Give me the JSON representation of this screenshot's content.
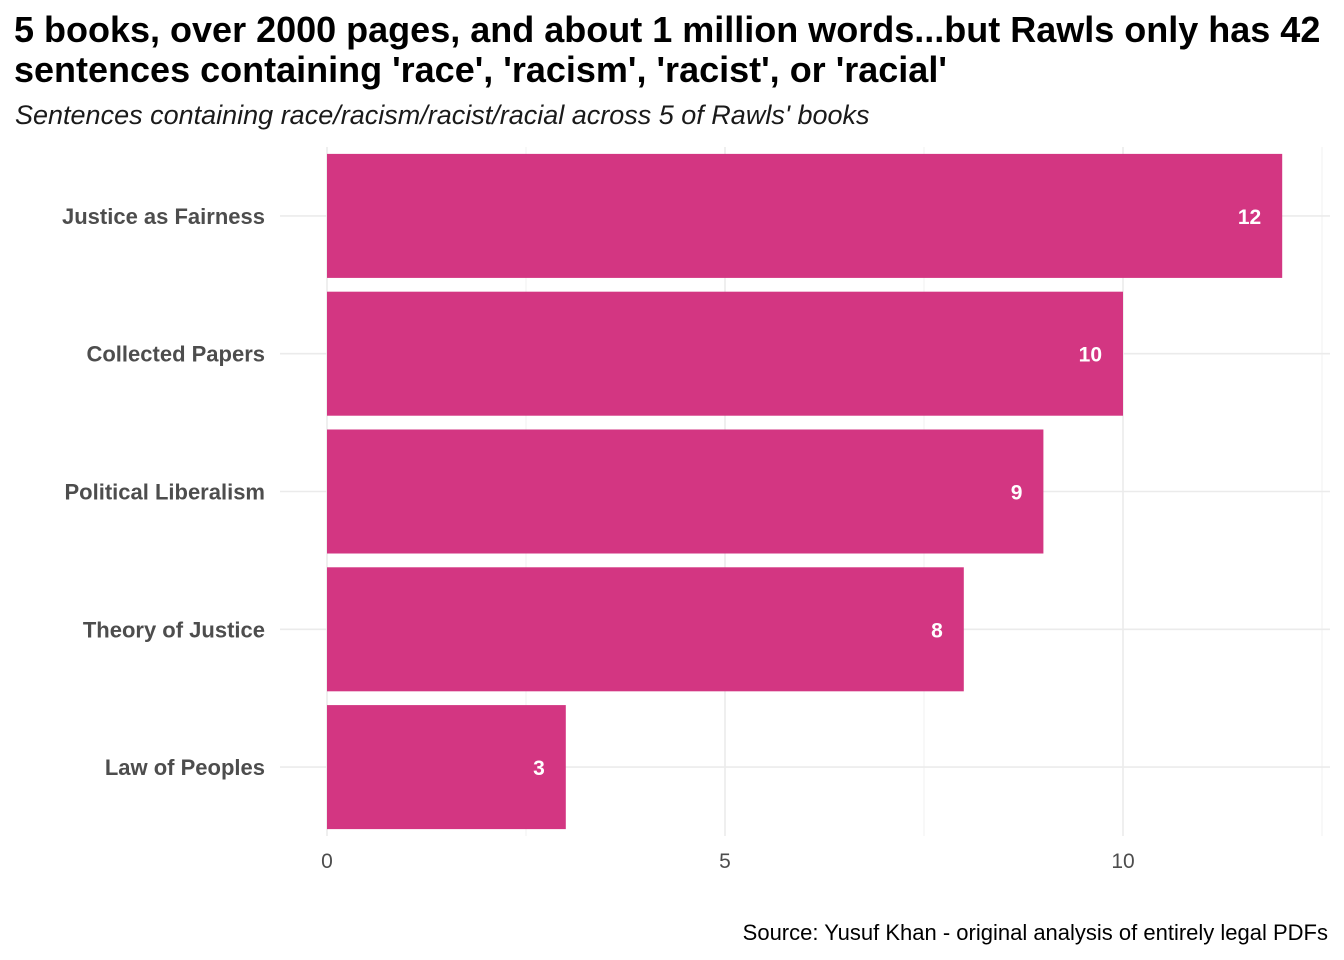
{
  "chart_data": {
    "type": "bar",
    "orientation": "horizontal",
    "title": "5 books, over 2000 pages, and about 1 million words...but Rawls only has 42 sentences containing 'race', 'racism', 'racist', or 'racial'",
    "subtitle": "Sentences containing race/racism/racist/racial across 5 of Rawls' books",
    "caption": "Source: Yusuf Khan - original analysis of entirely legal PDFs",
    "categories": [
      "Justice as Fairness",
      "Collected Papers",
      "Political Liberalism",
      "Theory of Justice",
      "Law of Peoples"
    ],
    "values": [
      12,
      10,
      9,
      8,
      3
    ],
    "xlabel": "",
    "ylabel": "",
    "xlim": [
      0,
      12.5
    ],
    "x_ticks": [
      0,
      5,
      10
    ],
    "bar_color": "#D33682",
    "grid": true,
    "legend": "none"
  }
}
